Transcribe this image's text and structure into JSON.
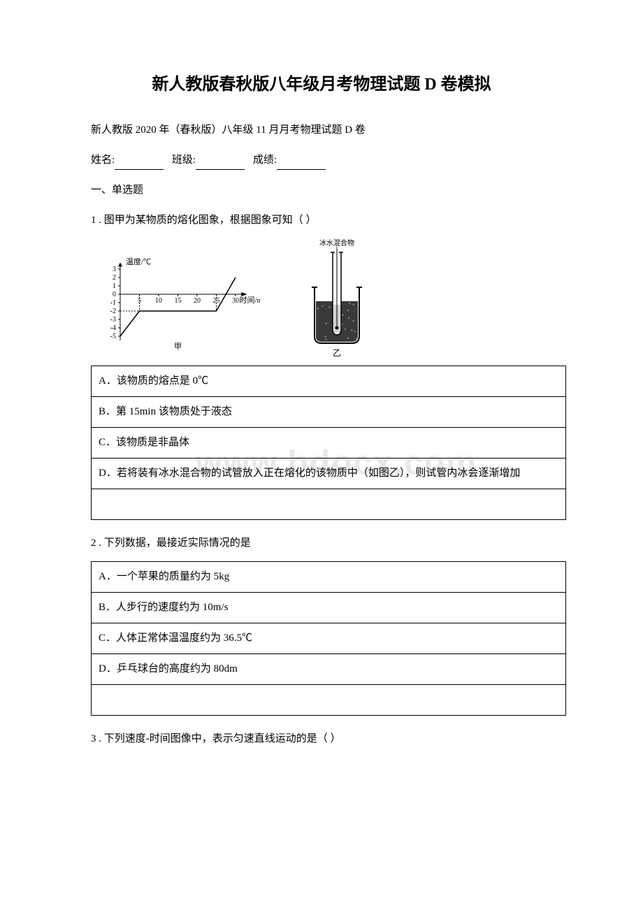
{
  "title": "新人教版春秋版八年级月考物理试题 D 卷模拟",
  "subtitle": "新人教版 2020 年（春秋版）八年级 11 月月考物理试题 D 卷",
  "form": {
    "name_label": "姓名:",
    "class_label": "班级:",
    "score_label": "成绩:"
  },
  "section1": "一、单选题",
  "watermark_text": "www.bdocx.com",
  "q1": {
    "stem": "1 . 图甲为某物质的熔化图象，根据图象可知（  ）",
    "options": {
      "A": "A．该物质的熔点是 0℃",
      "B": "B．第 15min 该物质处于液态",
      "C": "C．该物质是非晶体",
      "D": "D．若将装有冰水混合物的试管放入正在熔化的该物质中（如图乙），则试管内冰会逐渐增加"
    },
    "chart_jia": {
      "type": "line",
      "x_label": "时间/min",
      "y_label": "温度/℃",
      "x_ticks": [
        5,
        10,
        15,
        20,
        25,
        30
      ],
      "y_ticks": [
        -5,
        -4,
        -3,
        -2,
        -1,
        0,
        1,
        2,
        3
      ],
      "caption": "甲",
      "axis_color": "#000000",
      "line_color": "#000000",
      "text_color": "#000000",
      "background_color": "#ffffff",
      "font_size": 10,
      "points": [
        {
          "x": 0,
          "y": -5
        },
        {
          "x": 5,
          "y": -2
        },
        {
          "x": 25,
          "y": -2
        },
        {
          "x": 30,
          "y": 2
        }
      ]
    },
    "chart_yi": {
      "label_top": "冰水混合物",
      "caption": "乙",
      "outline_color": "#000000",
      "fill_color": "#3a3a3a",
      "background_color": "#ffffff"
    }
  },
  "q2": {
    "stem": "2 . 下列数据，最接近实际情况的是",
    "options": {
      "A": "A．一个苹果的质量约为 5kg",
      "B": "B．人步行的速度约为 10m/s",
      "C": "C．人体正常体温温度约为 36.5℃",
      "D": "D．乒乓球台的高度约为 80dm"
    }
  },
  "q3": {
    "stem": "3 . 下列速度-时间图像中，表示匀速直线运动的是（  ）"
  }
}
